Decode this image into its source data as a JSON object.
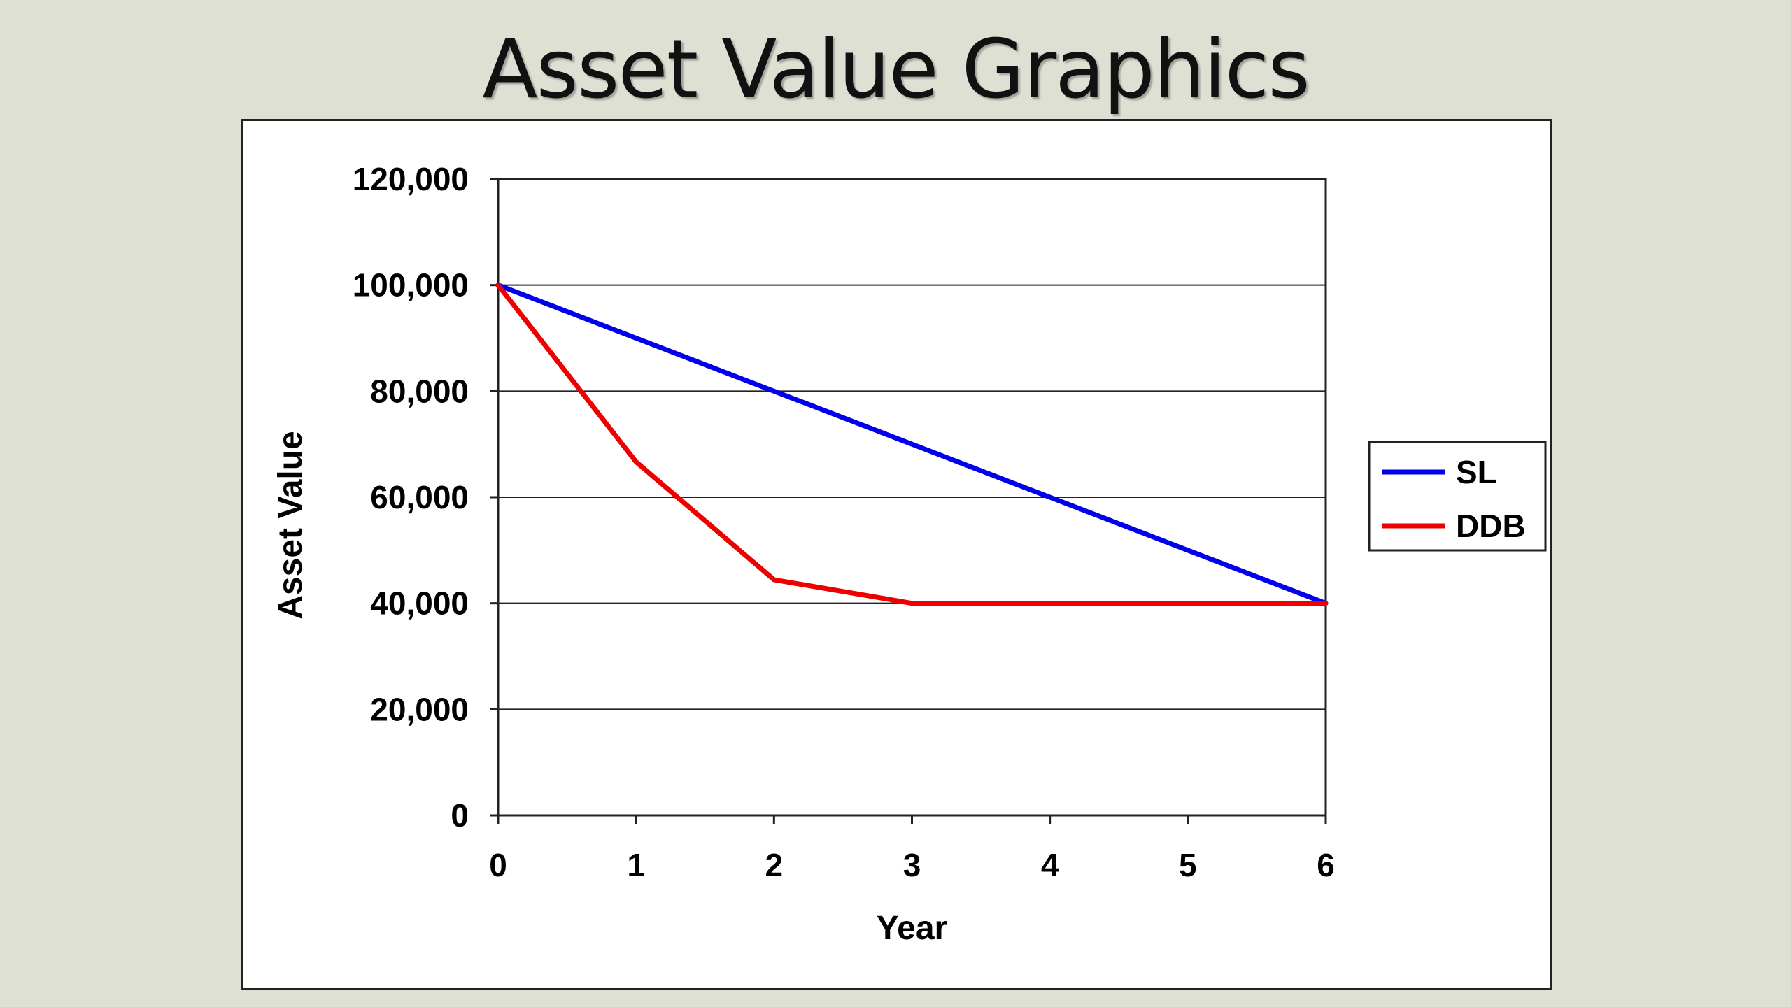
{
  "slide": {
    "title": "Asset Value Graphics"
  },
  "chart_data": {
    "type": "line",
    "xlabel": "Year",
    "ylabel": "Asset Value",
    "x": [
      0,
      1,
      2,
      3,
      4,
      5,
      6
    ],
    "xlim": [
      0,
      6
    ],
    "ylim": [
      0,
      120000
    ],
    "yticks": [
      0,
      20000,
      40000,
      60000,
      80000,
      100000,
      120000
    ],
    "ytick_labels": [
      "0",
      "20,000",
      "40,000",
      "60,000",
      "80,000",
      "100,000",
      "120,000"
    ],
    "xtick_labels": [
      "0",
      "1",
      "2",
      "3",
      "4",
      "5",
      "6"
    ],
    "grid": "horizontal",
    "legend_position": "right",
    "series": [
      {
        "name": "SL",
        "color": "#0000ee",
        "values": [
          100000,
          90000,
          80000,
          70000,
          60000,
          50000,
          40000
        ]
      },
      {
        "name": "DDB",
        "color": "#ee0000",
        "values": [
          100000,
          66667,
          44444,
          40000,
          40000,
          40000,
          40000
        ]
      }
    ]
  }
}
